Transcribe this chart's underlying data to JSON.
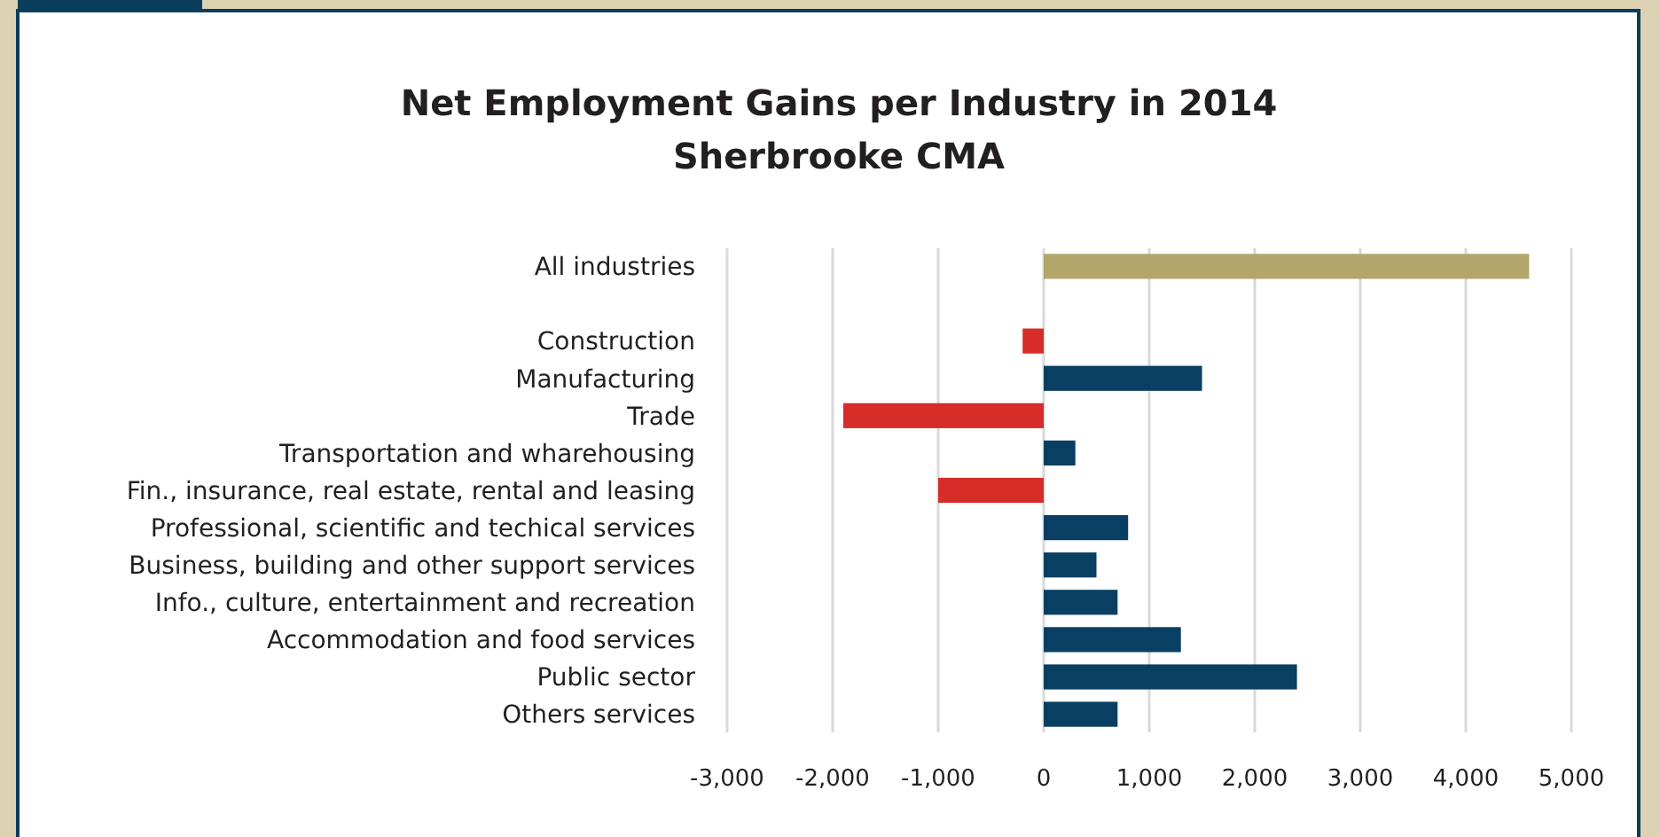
{
  "chart_data": {
    "type": "bar",
    "orientation": "horizontal",
    "title": "Net Employment Gains per Industry in 2014",
    "subtitle": "Sherbrooke CMA",
    "categories": [
      "All industries",
      null,
      "Construction",
      "Manufacturing",
      "Trade",
      "Transportation and wharehousing",
      "Fin., insurance, real estate, rental and leasing",
      "Professional, scientific and techical services",
      "Business, building and other support services",
      "Info., culture, entertainment and recreation",
      "Accommodation and food services",
      "Public sector",
      "Others services"
    ],
    "values": [
      4600,
      null,
      -200,
      1500,
      -1900,
      300,
      -1000,
      800,
      500,
      700,
      1300,
      2400,
      700
    ],
    "colors": [
      "#b3a66a",
      null,
      "#d62d28",
      "#083f63",
      "#d62d28",
      "#083f63",
      "#d62d28",
      "#083f63",
      "#083f63",
      "#083f63",
      "#083f63",
      "#083f63",
      "#083f63"
    ],
    "xlim": [
      -3000,
      5000
    ],
    "xticks": [
      {
        "value": -3000,
        "label": "-3,000"
      },
      {
        "value": -2000,
        "label": "-2,000"
      },
      {
        "value": -1000,
        "label": "-1,000"
      },
      0,
      {
        "value": 1000,
        "label": "1,000"
      },
      {
        "value": 2000,
        "label": "2,000"
      },
      {
        "value": 3000,
        "label": "3,000"
      },
      {
        "value": 4000,
        "label": "4,000"
      },
      {
        "value": 5000,
        "label": "5,000"
      }
    ],
    "grid": "x"
  }
}
